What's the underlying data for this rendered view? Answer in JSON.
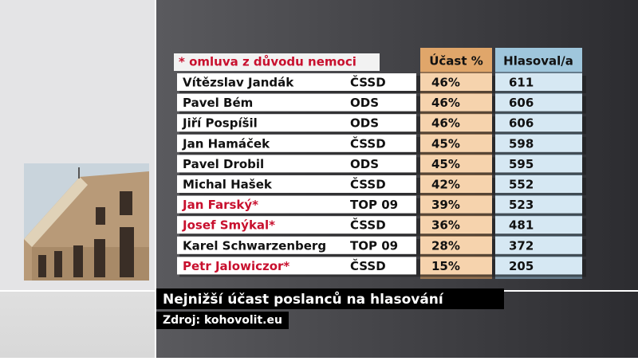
{
  "table": {
    "note": "* omluva z důvodu nemoci",
    "columns": [
      "Účast %",
      "Hlasoval/a"
    ],
    "rows": [
      {
        "name": "Vítězslav Jandák",
        "party": "ČSSD",
        "share": "46%",
        "votes": "611",
        "color": "#111111"
      },
      {
        "name": "Pavel Bém",
        "party": "ODS",
        "share": "46%",
        "votes": "606",
        "color": "#111111"
      },
      {
        "name": "Jiří Pospíšil",
        "party": "ODS",
        "share": "46%",
        "votes": "606",
        "color": "#111111"
      },
      {
        "name": "Jan Hamáček",
        "party": "ČSSD",
        "share": "45%",
        "votes": "598",
        "color": "#111111"
      },
      {
        "name": "Pavel Drobil",
        "party": "ODS",
        "share": "45%",
        "votes": "595",
        "color": "#111111"
      },
      {
        "name": "Michal Hašek",
        "party": "ČSSD",
        "share": "42%",
        "votes": "552",
        "color": "#111111"
      },
      {
        "name": "Jan Farský*",
        "party": "TOP 09",
        "share": "39%",
        "votes": "523",
        "color": "#c8102e"
      },
      {
        "name": "Josef Smýkal*",
        "party": "ČSSD",
        "share": "36%",
        "votes": "481",
        "color": "#c8102e"
      },
      {
        "name": "Karel Schwarzenberg",
        "party": "TOP 09",
        "share": "28%",
        "votes": "372",
        "color": "#111111"
      },
      {
        "name": "Petr Jalowiczor*",
        "party": "ČSSD",
        "share": "15%",
        "votes": "205",
        "color": "#c8102e"
      }
    ]
  },
  "caption": {
    "title": "Nejnižší účast poslanců na hlasování",
    "source": "Zdroj: kohovolit.eu"
  }
}
